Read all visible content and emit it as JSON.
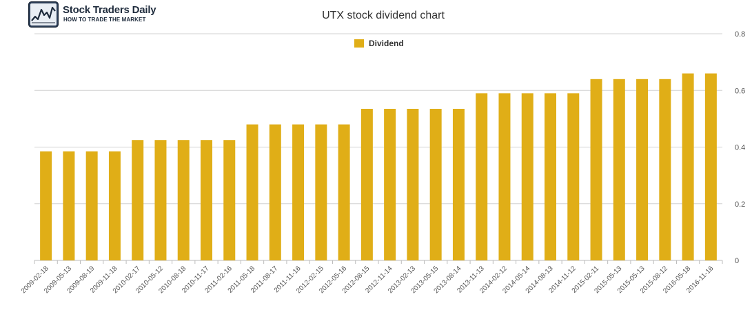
{
  "brand": {
    "name": "Stock Traders Daily",
    "tagline": "HOW TO TRADE THE MARKET",
    "icon": "stock-chart-logo-icon"
  },
  "chart_data": {
    "type": "bar",
    "title": "UTX stock dividend chart",
    "xlabel": "",
    "ylabel": "",
    "ylim": [
      0,
      0.8
    ],
    "yticks": [
      "0",
      "0.2",
      "0.4",
      "0.6",
      "0.8"
    ],
    "grid": true,
    "legend_position": "top-center",
    "colors": {
      "bar": "#e0ae17",
      "grid": "#d0d0d0"
    },
    "categories": [
      "2009-02-18",
      "2009-05-13",
      "2009-08-19",
      "2009-11-18",
      "2010-02-17",
      "2010-05-12",
      "2010-08-18",
      "2010-11-17",
      "2011-02-16",
      "2011-05-18",
      "2011-08-17",
      "2011-11-16",
      "2012-02-15",
      "2012-05-16",
      "2012-08-15",
      "2012-11-14",
      "2013-02-13",
      "2013-05-15",
      "2013-08-14",
      "2013-11-13",
      "2014-02-12",
      "2014-05-14",
      "2014-08-13",
      "2014-11-12",
      "2015-02-11",
      "2015-05-13",
      "2015-05-13",
      "2015-08-12",
      "2016-05-18",
      "2016-11-16"
    ],
    "series": [
      {
        "name": "Dividend",
        "values": [
          0.385,
          0.385,
          0.385,
          0.385,
          0.425,
          0.425,
          0.425,
          0.425,
          0.425,
          0.48,
          0.48,
          0.48,
          0.48,
          0.48,
          0.535,
          0.535,
          0.535,
          0.535,
          0.535,
          0.59,
          0.59,
          0.59,
          0.59,
          0.59,
          0.64,
          0.64,
          0.64,
          0.64,
          0.66,
          0.66
        ]
      }
    ]
  }
}
